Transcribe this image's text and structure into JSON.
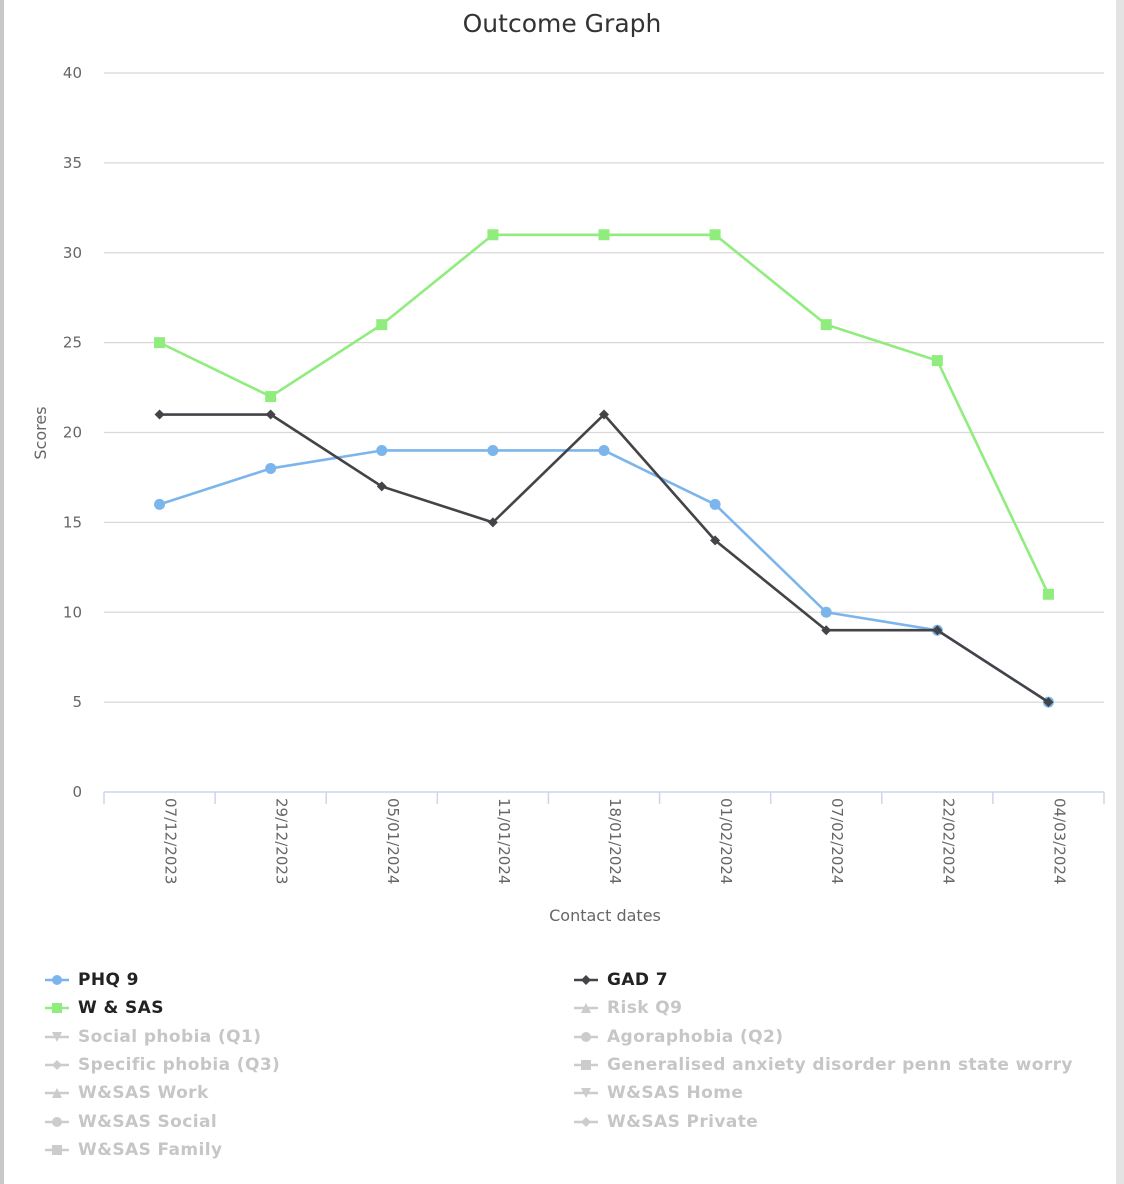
{
  "chart_data": {
    "type": "line",
    "title": "Outcome Graph",
    "xlabel": "Contact dates",
    "ylabel": "Scores",
    "ylim": [
      0,
      40
    ],
    "yticks": [
      0,
      5,
      10,
      15,
      20,
      25,
      30,
      35,
      40
    ],
    "grid": true,
    "legend_position": "bottom",
    "categories": [
      "07/12/2023",
      "29/12/2023",
      "05/01/2024",
      "11/01/2024",
      "18/01/2024",
      "01/02/2024",
      "07/02/2024",
      "22/02/2024",
      "04/03/2024"
    ],
    "series": [
      {
        "name": "PHQ 9",
        "color": "#7cb5ec",
        "marker": "circle",
        "visible": true,
        "values": [
          16,
          18,
          19,
          19,
          19,
          16,
          10,
          9,
          5
        ]
      },
      {
        "name": "W & SAS",
        "color": "#90ed7d",
        "marker": "square",
        "visible": true,
        "values": [
          25,
          22,
          26,
          31,
          31,
          31,
          26,
          24,
          11
        ]
      },
      {
        "name": "GAD 7",
        "color": "#434348",
        "marker": "diamond",
        "visible": true,
        "values": [
          21,
          21,
          17,
          15,
          21,
          14,
          9,
          9,
          5
        ]
      }
    ],
    "legend": [
      {
        "name": "PHQ 9",
        "color": "#7cb5ec",
        "marker": "circle",
        "active": true
      },
      {
        "name": "GAD 7",
        "color": "#434348",
        "marker": "diamond",
        "active": true
      },
      {
        "name": "W & SAS",
        "color": "#90ed7d",
        "marker": "square",
        "active": true
      },
      {
        "name": "Risk Q9",
        "color": "#cccccc",
        "marker": "triangle",
        "active": false
      },
      {
        "name": "Social phobia (Q1)",
        "color": "#cccccc",
        "marker": "triangle-down",
        "active": false
      },
      {
        "name": "Agoraphobia (Q2)",
        "color": "#cccccc",
        "marker": "circle",
        "active": false
      },
      {
        "name": "Specific phobia (Q3)",
        "color": "#cccccc",
        "marker": "diamond",
        "active": false
      },
      {
        "name": "Generalised anxiety disorder penn state worry",
        "color": "#cccccc",
        "marker": "square",
        "active": false
      },
      {
        "name": "W&SAS Work",
        "color": "#cccccc",
        "marker": "triangle",
        "active": false
      },
      {
        "name": "W&SAS Home",
        "color": "#cccccc",
        "marker": "triangle-down",
        "active": false
      },
      {
        "name": "W&SAS Social",
        "color": "#cccccc",
        "marker": "circle",
        "active": false
      },
      {
        "name": "W&SAS Private",
        "color": "#cccccc",
        "marker": "diamond",
        "active": false
      },
      {
        "name": "W&SAS Family",
        "color": "#cccccc",
        "marker": "square",
        "active": false
      }
    ]
  }
}
